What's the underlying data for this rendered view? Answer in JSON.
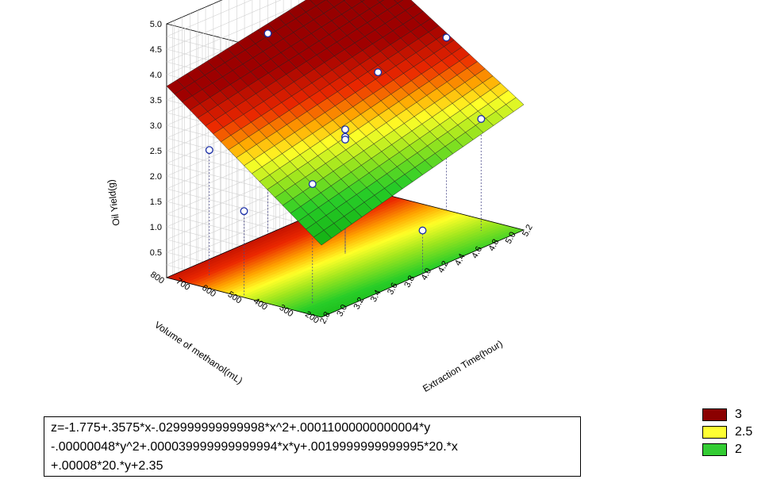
{
  "chart_data": {
    "type": "surface3d",
    "xlabel": "Extraction Time(hour)",
    "ylabel": "Volume of methanol(mL)",
    "zlabel": "Oil Yield(g)",
    "xlim": [
      2.8,
      5.2
    ],
    "ylim": [
      200,
      800
    ],
    "zlim": [
      0,
      5.0
    ],
    "x_ticks": [
      "2.8",
      "3.0",
      "3.2",
      "3.4",
      "3.6",
      "3.8",
      "4.0",
      "4.2",
      "4.4",
      "4.6",
      "4.8",
      "5.0",
      "5.2"
    ],
    "y_ticks": [
      "200",
      "300",
      "400",
      "500",
      "600",
      "700",
      "800"
    ],
    "z_ticks": [
      "0.5",
      "1.0",
      "1.5",
      "2.0",
      "2.5",
      "3.0",
      "3.5",
      "4.0",
      "4.5",
      "5.0"
    ],
    "equation_lines": [
      "z=-1.775+.3575*x-.029999999999998*x^2+.00011000000000004*y",
      "-.00000048*y^2+.000039999999999994*x*y+.0019999999999995*20.*x",
      "+.00008*20.*y+2.35"
    ],
    "points": [
      {
        "x": 3.0,
        "y": 700,
        "z": 2.5
      },
      {
        "x": 5.0,
        "y": 700,
        "z": 2.6
      },
      {
        "x": 3.0,
        "y": 300,
        "z": 2.35
      },
      {
        "x": 5.0,
        "y": 300,
        "z": 2.2
      },
      {
        "x": 4.0,
        "y": 500,
        "z": 2.45
      },
      {
        "x": 4.0,
        "y": 500,
        "z": 2.3
      },
      {
        "x": 4.0,
        "y": 500,
        "z": 2.25
      },
      {
        "x": 4.0,
        "y": 800,
        "z": 3.95
      },
      {
        "x": 4.0,
        "y": 200,
        "z": 0.85
      },
      {
        "x": 2.8,
        "y": 500,
        "z": 1.7
      },
      {
        "x": 5.2,
        "y": 500,
        "z": 3.4
      }
    ],
    "legend": [
      {
        "label": "3",
        "color": "#8b0000"
      },
      {
        "label": "2.5",
        "color": "#ffff33"
      },
      {
        "label": "2",
        "color": "#33cc33"
      }
    ]
  }
}
